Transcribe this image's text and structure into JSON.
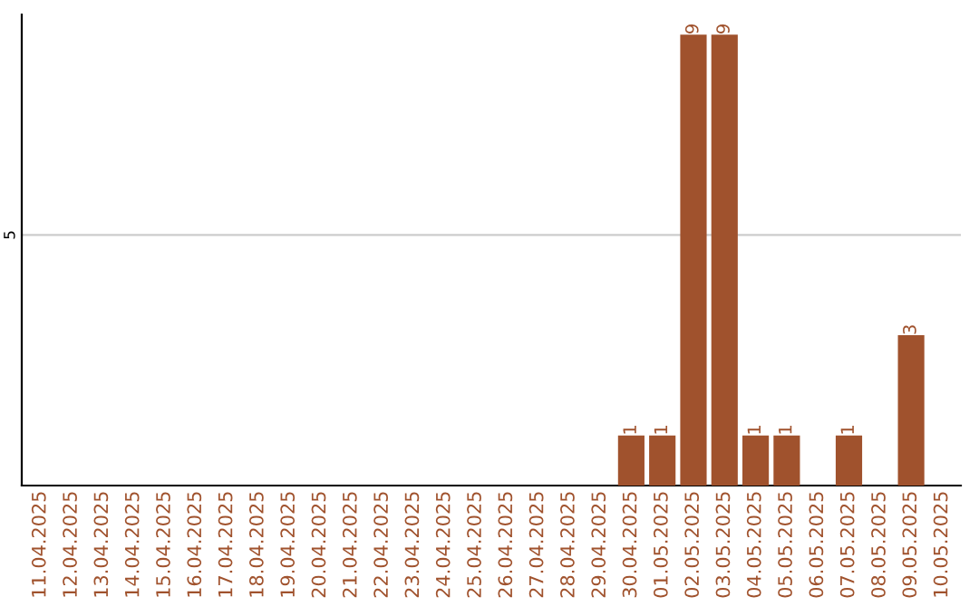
{
  "chart_data": {
    "type": "bar",
    "ylim": [
      0,
      9.4
    ],
    "data_labels": true,
    "categories": [
      "11.04.2025",
      "12.04.2025",
      "13.04.2025",
      "14.04.2025",
      "15.04.2025",
      "16.04.2025",
      "17.04.2025",
      "18.04.2025",
      "19.04.2025",
      "20.04.2025",
      "21.04.2025",
      "22.04.2025",
      "23.04.2025",
      "24.04.2025",
      "25.04.2025",
      "26.04.2025",
      "27.04.2025",
      "28.04.2025",
      "29.04.2025",
      "30.04.2025",
      "01.05.2025",
      "02.05.2025",
      "03.05.2025",
      "04.05.2025",
      "05.05.2025",
      "06.05.2025",
      "07.05.2025",
      "08.05.2025",
      "09.05.2025",
      "10.05.2025"
    ],
    "series": [
      {
        "color": "#a0522d",
        "values": [
          null,
          null,
          null,
          null,
          null,
          null,
          null,
          null,
          null,
          null,
          null,
          null,
          null,
          null,
          null,
          null,
          null,
          null,
          null,
          1,
          1,
          9,
          9,
          1,
          1,
          null,
          1,
          null,
          3,
          null
        ]
      }
    ],
    "ref_lines": [
      {
        "axis": "y",
        "value": 5,
        "label": "5",
        "color": "#cccccc"
      }
    ],
    "legend": false
  }
}
